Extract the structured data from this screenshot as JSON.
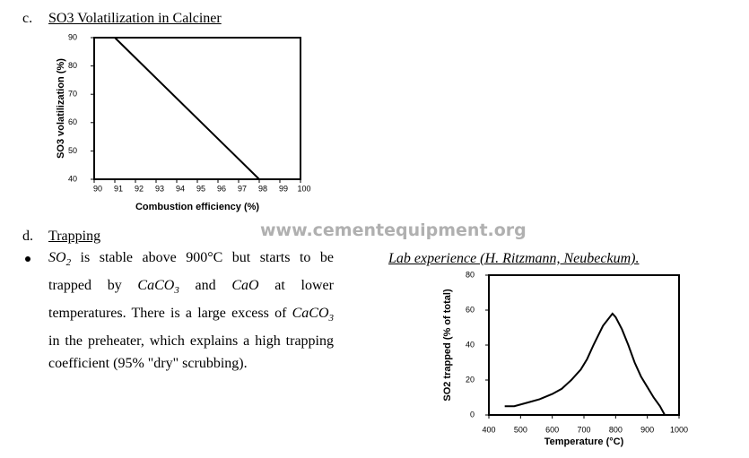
{
  "section_c": {
    "letter": "c.",
    "title": "SO3 Volatilization in Calciner"
  },
  "section_d": {
    "letter": "d.",
    "title": "Trapping",
    "paragraph": [
      "SO",
      "2",
      " is stable above 900°C but starts to be trapped by ",
      "CaCO",
      "3",
      " and ",
      "CaO",
      "  at lower temperatures. There is a large excess of ",
      "CaCO",
      "3",
      " in the preheater, which explains a high trapping coefficient (95% \"dry\" scrubbing)."
    ]
  },
  "watermark": "www.cementequipment.org",
  "lab_caption": "Lab experience (H. Ritzmann, Neubeckum).",
  "chart_data": [
    {
      "type": "line",
      "xlabel": "Combustion efficiency (%)",
      "ylabel": "SO3 volatilization (%)",
      "x": [
        91,
        98
      ],
      "values": [
        90,
        40
      ],
      "color": "#000000",
      "xlim": [
        90,
        100
      ],
      "xticks": [
        90,
        91,
        92,
        93,
        94,
        95,
        96,
        97,
        98,
        99,
        100
      ],
      "ylim": [
        40,
        90
      ],
      "yticks": [
        40,
        50,
        60,
        70,
        80,
        90
      ]
    },
    {
      "type": "line",
      "xlabel": "Temperature (°C)",
      "ylabel": "SO2 trapped (% of total)",
      "x": [
        450,
        480,
        520,
        560,
        600,
        630,
        660,
        690,
        710,
        730,
        760,
        790,
        800,
        820,
        840,
        860,
        880,
        900,
        920,
        940,
        955
      ],
      "values": [
        5,
        5,
        7,
        9,
        12,
        15,
        20,
        26,
        32,
        40,
        51,
        58,
        56,
        49,
        40,
        30,
        22,
        16,
        10,
        5,
        0
      ],
      "color": "#000000",
      "xlim": [
        400,
        1000
      ],
      "xticks": [
        400,
        500,
        600,
        700,
        800,
        900,
        1000
      ],
      "ylim": [
        0,
        80
      ],
      "yticks": [
        0,
        20,
        40,
        60,
        80
      ]
    }
  ]
}
